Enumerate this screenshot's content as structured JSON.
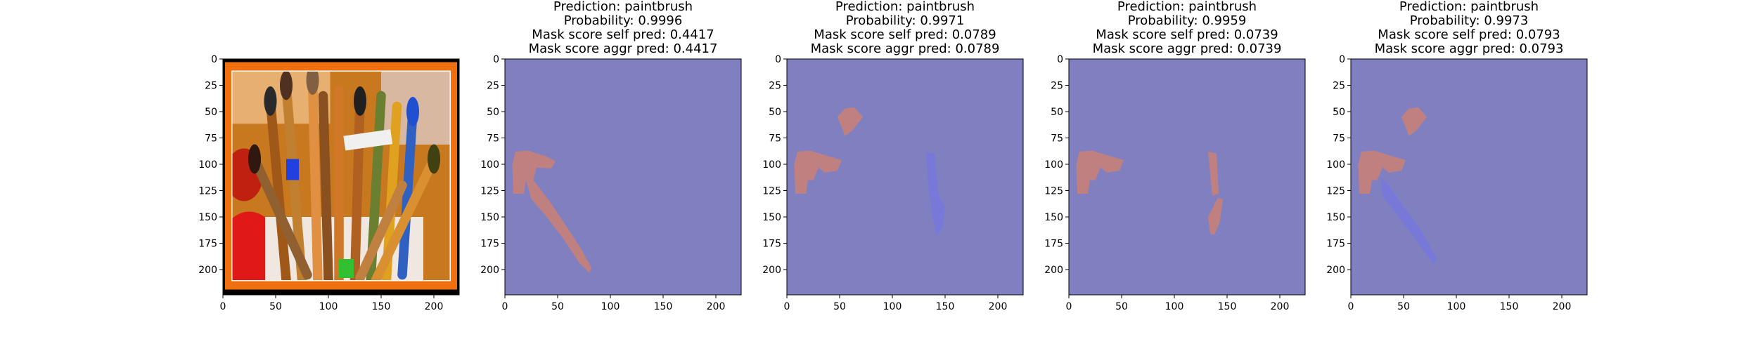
{
  "chart_data": [
    {
      "type": "image",
      "title_lines": [],
      "description": "photo of paintbrushes in a cup with an orange/black frame",
      "xlim": [
        0,
        224
      ],
      "ylim": [
        224,
        0
      ],
      "xticks": [
        0,
        50,
        100,
        150,
        200
      ],
      "yticks": [
        0,
        25,
        50,
        75,
        100,
        125,
        150,
        175,
        200
      ]
    },
    {
      "type": "heatmap",
      "title_lines": [
        "Prediction: paintbrush",
        "Probability: 0.9996",
        "Mask score self pred: 0.4417",
        "Mask score aggr pred: 0.4417"
      ],
      "xlim": [
        0,
        224
      ],
      "ylim": [
        224,
        0
      ],
      "xticks": [
        0,
        50,
        100,
        150,
        200
      ],
      "yticks": [
        0,
        25,
        50,
        75,
        100,
        125,
        150,
        175,
        200
      ],
      "background": "#8080c0",
      "regions": [
        {
          "color": "#c08080",
          "points": [
            [
              10,
              88
            ],
            [
              22,
              87
            ],
            [
              38,
              92
            ],
            [
              48,
              97
            ],
            [
              44,
              104
            ],
            [
              30,
              103
            ],
            [
              27,
              115
            ],
            [
              43,
              136
            ],
            [
              59,
              160
            ],
            [
              72,
              180
            ],
            [
              82,
              198
            ],
            [
              80,
              203
            ],
            [
              70,
              193
            ],
            [
              55,
              170
            ],
            [
              38,
              148
            ],
            [
              25,
              133
            ],
            [
              20,
              115
            ],
            [
              18,
              128
            ],
            [
              8,
              128
            ],
            [
              7,
              100
            ]
          ]
        }
      ]
    },
    {
      "type": "heatmap",
      "title_lines": [
        "Prediction: paintbrush",
        "Probability: 0.9971",
        "Mask score self pred: 0.0789",
        "Mask score aggr pred: 0.0789"
      ],
      "xlim": [
        0,
        224
      ],
      "ylim": [
        224,
        0
      ],
      "xticks": [
        0,
        50,
        100,
        150,
        200
      ],
      "yticks": [
        0,
        25,
        50,
        75,
        100,
        125,
        150,
        175,
        200
      ],
      "background": "#8080c0",
      "regions": [
        {
          "color": "#c08080",
          "points": [
            [
              48,
              55
            ],
            [
              55,
              47
            ],
            [
              64,
              46
            ],
            [
              72,
              55
            ],
            [
              62,
              68
            ],
            [
              55,
              73
            ],
            [
              52,
              65
            ]
          ]
        },
        {
          "color": "#c08080",
          "points": [
            [
              10,
              88
            ],
            [
              22,
              87
            ],
            [
              38,
              92
            ],
            [
              52,
              96
            ],
            [
              48,
              106
            ],
            [
              36,
              108
            ],
            [
              30,
              103
            ],
            [
              25,
              115
            ],
            [
              20,
              115
            ],
            [
              18,
              128
            ],
            [
              8,
              128
            ],
            [
              7,
              100
            ]
          ]
        },
        {
          "color": "#7878d8",
          "points": [
            [
              132,
              88
            ],
            [
              140,
              90
            ],
            [
              144,
              130
            ],
            [
              150,
              140
            ],
            [
              148,
              160
            ],
            [
              142,
              168
            ],
            [
              138,
              150
            ],
            [
              134,
              120
            ]
          ]
        }
      ]
    },
    {
      "type": "heatmap",
      "title_lines": [
        "Prediction: paintbrush",
        "Probability: 0.9959",
        "Mask score self pred: 0.0739",
        "Mask score aggr pred: 0.0739"
      ],
      "xlim": [
        0,
        224
      ],
      "ylim": [
        224,
        0
      ],
      "xticks": [
        0,
        50,
        100,
        150,
        200
      ],
      "yticks": [
        0,
        25,
        50,
        75,
        100,
        125,
        150,
        175,
        200
      ],
      "background": "#8080c0",
      "regions": [
        {
          "color": "#c08080",
          "points": [
            [
              10,
              88
            ],
            [
              22,
              87
            ],
            [
              38,
              92
            ],
            [
              52,
              96
            ],
            [
              48,
              106
            ],
            [
              36,
              108
            ],
            [
              30,
              103
            ],
            [
              25,
              115
            ],
            [
              20,
              115
            ],
            [
              18,
              128
            ],
            [
              8,
              128
            ],
            [
              7,
              100
            ]
          ]
        },
        {
          "color": "#c08080",
          "points": [
            [
              132,
              88
            ],
            [
              140,
              90
            ],
            [
              142,
              128
            ],
            [
              136,
              130
            ]
          ]
        },
        {
          "color": "#c08080",
          "points": [
            [
              141,
              132
            ],
            [
              146,
              133
            ],
            [
              143,
              155
            ],
            [
              138,
              167
            ],
            [
              134,
              166
            ],
            [
              132,
              150
            ]
          ]
        }
      ]
    },
    {
      "type": "heatmap",
      "title_lines": [
        "Prediction: paintbrush",
        "Probability: 0.9973",
        "Mask score self pred: 0.0793",
        "Mask score aggr pred: 0.0793"
      ],
      "xlim": [
        0,
        224
      ],
      "ylim": [
        224,
        0
      ],
      "xticks": [
        0,
        50,
        100,
        150,
        200
      ],
      "yticks": [
        0,
        25,
        50,
        75,
        100,
        125,
        150,
        175,
        200
      ],
      "background": "#8080c0",
      "regions": [
        {
          "color": "#7878d8",
          "points": [
            [
              28,
              112
            ],
            [
              36,
              120
            ],
            [
              50,
              140
            ],
            [
              65,
              160
            ],
            [
              82,
              190
            ],
            [
              78,
              195
            ],
            [
              62,
              172
            ],
            [
              45,
              150
            ],
            [
              30,
              130
            ]
          ]
        },
        {
          "color": "#c08080",
          "points": [
            [
              48,
              55
            ],
            [
              55,
              47
            ],
            [
              64,
              46
            ],
            [
              72,
              55
            ],
            [
              62,
              68
            ],
            [
              55,
              73
            ],
            [
              52,
              65
            ]
          ]
        },
        {
          "color": "#c08080",
          "points": [
            [
              10,
              88
            ],
            [
              22,
              87
            ],
            [
              38,
              92
            ],
            [
              52,
              96
            ],
            [
              48,
              106
            ],
            [
              36,
              108
            ],
            [
              30,
              103
            ],
            [
              25,
              115
            ],
            [
              20,
              115
            ],
            [
              18,
              128
            ],
            [
              8,
              128
            ],
            [
              7,
              100
            ]
          ]
        }
      ]
    }
  ]
}
